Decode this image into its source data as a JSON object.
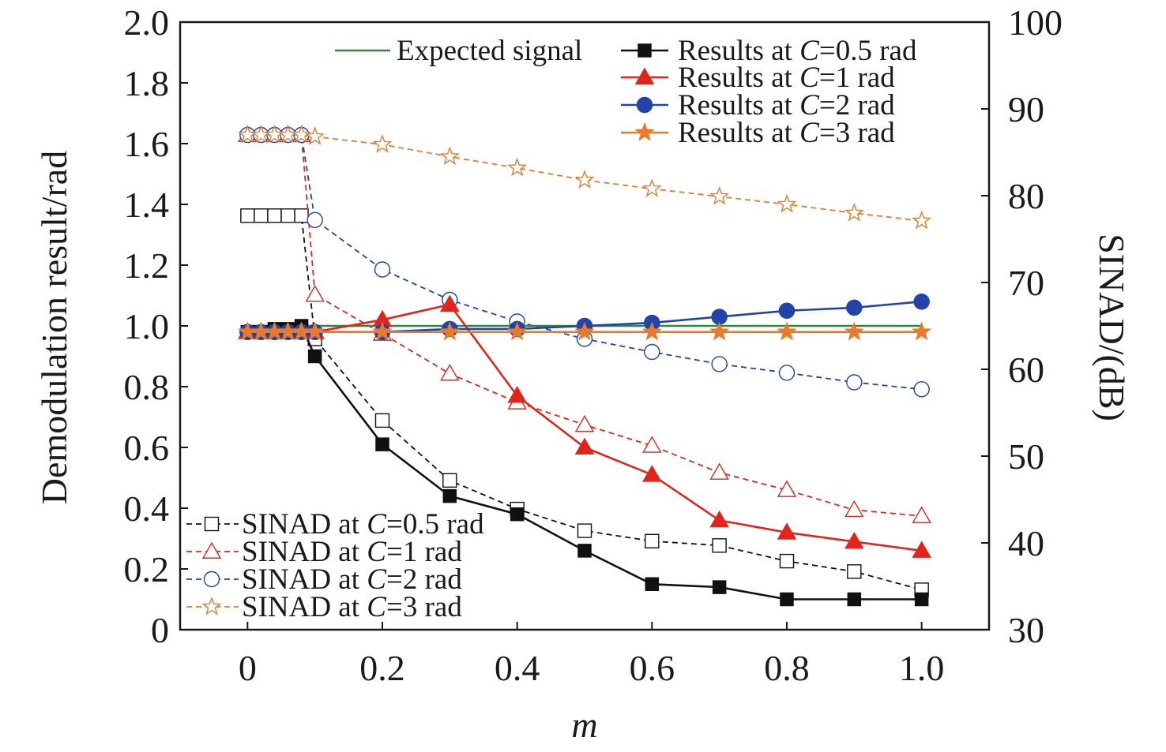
{
  "chart_data": {
    "type": "line",
    "title": "",
    "xlabel": "m",
    "ylabel_left": "Demodulation result/rad",
    "ylabel_right": "SINAD/(dB)",
    "xlim": [
      -0.1,
      1.1
    ],
    "ylim_left": [
      0,
      2.0
    ],
    "ylim_right": [
      30,
      100
    ],
    "xticks": [
      0,
      0.2,
      0.4,
      0.6,
      0.8,
      1.0
    ],
    "xtick_labels": [
      "0",
      "0.2",
      "0.4",
      "0.6",
      "0.8",
      "1.0"
    ],
    "yticks_left": [
      0,
      0.2,
      0.4,
      0.6,
      0.8,
      1.0,
      1.2,
      1.4,
      1.6,
      1.8,
      2.0
    ],
    "ytick_labels_left": [
      "0",
      "0.2",
      "0.4",
      "0.6",
      "0.8",
      "1.0",
      "1.2",
      "1.4",
      "1.6",
      "1.8",
      "2.0"
    ],
    "yticks_right": [
      30,
      40,
      50,
      60,
      70,
      80,
      90,
      100
    ],
    "ytick_labels_right": [
      "30",
      "40",
      "50",
      "60",
      "70",
      "80",
      "90",
      "100"
    ],
    "x": [
      0,
      0.02,
      0.04,
      0.06,
      0.08,
      0.1,
      0.2,
      0.3,
      0.4,
      0.5,
      0.6,
      0.7,
      0.8,
      0.9,
      1.0
    ],
    "series": [
      {
        "name": "Expected signal",
        "axis": "left",
        "style": "solid",
        "marker": "none",
        "color": "#2e8b3a",
        "values": [
          1.0,
          1.0,
          1.0,
          1.0,
          1.0,
          1.0,
          1.0,
          1.0,
          1.0,
          1.0,
          1.0,
          1.0,
          1.0,
          1.0,
          1.0
        ]
      },
      {
        "name": "Results at C=0.5 rad",
        "axis": "left",
        "style": "solid",
        "marker": "square-filled",
        "color": "#111111",
        "values": [
          0.98,
          0.98,
          0.99,
          0.99,
          1.0,
          0.9,
          0.61,
          0.44,
          0.38,
          0.26,
          0.15,
          0.14,
          0.1,
          0.1,
          0.1
        ]
      },
      {
        "name": "Results at C=1 rad",
        "axis": "left",
        "style": "solid",
        "marker": "triangle-filled",
        "color": "#e0261c",
        "values": [
          0.98,
          0.98,
          0.98,
          0.98,
          0.98,
          0.98,
          1.02,
          1.07,
          0.77,
          0.6,
          0.51,
          0.36,
          0.32,
          0.29,
          0.26
        ]
      },
      {
        "name": "Results at C=2 rad",
        "axis": "left",
        "style": "solid",
        "marker": "circle-filled",
        "color": "#2244a8",
        "values": [
          0.98,
          0.98,
          0.98,
          0.98,
          0.98,
          0.98,
          0.98,
          0.99,
          0.99,
          1.0,
          1.01,
          1.03,
          1.05,
          1.06,
          1.08
        ]
      },
      {
        "name": "Results at C=3 rad",
        "axis": "left",
        "style": "solid",
        "marker": "star-filled",
        "color": "#e8792d",
        "values": [
          0.98,
          0.98,
          0.98,
          0.98,
          0.98,
          0.98,
          0.98,
          0.98,
          0.98,
          0.98,
          0.98,
          0.98,
          0.98,
          0.98,
          0.98
        ]
      },
      {
        "name": "SINAD at C=0.5 rad",
        "axis": "right",
        "style": "dashed",
        "marker": "square-open",
        "color": "#111111",
        "values": [
          77.7,
          77.7,
          77.7,
          77.7,
          77.7,
          63.5,
          54.1,
          47.2,
          43.9,
          41.4,
          40.2,
          39.7,
          37.9,
          36.7,
          34.6
        ]
      },
      {
        "name": "SINAD at C=1 rad",
        "axis": "right",
        "style": "dashed",
        "marker": "triangle-open",
        "color": "#e0261c",
        "values": [
          87.0,
          87.0,
          87.0,
          87.0,
          87.0,
          68.6,
          64.1,
          59.5,
          56.2,
          53.6,
          51.2,
          48.1,
          46.1,
          43.8,
          43.1
        ]
      },
      {
        "name": "SINAD at C=2 rad",
        "axis": "right",
        "style": "dashed",
        "marker": "circle-open",
        "color": "#2244a8",
        "values": [
          87.0,
          87.0,
          87.0,
          87.0,
          87.0,
          77.2,
          71.5,
          68.0,
          65.5,
          63.5,
          62.0,
          60.6,
          59.6,
          58.5,
          57.7
        ]
      },
      {
        "name": "SINAD at C=3 rad",
        "axis": "right",
        "style": "dashed",
        "marker": "star-open",
        "color": "#e8792d",
        "values": [
          87.0,
          87.0,
          87.0,
          87.0,
          87.0,
          86.8,
          85.9,
          84.5,
          83.2,
          81.8,
          80.8,
          79.9,
          79.0,
          78.0,
          77.1
        ]
      }
    ],
    "legend_top_right": [
      {
        "italic_prefix": "",
        "text": "Expected signal"
      },
      {
        "prefix": "Results at ",
        "var": "C",
        "suffix": "=0.5 rad"
      },
      {
        "prefix": "Results at ",
        "var": "C",
        "suffix": "=1 rad"
      },
      {
        "prefix": "Results at ",
        "var": "C",
        "suffix": "=2 rad"
      },
      {
        "prefix": "Results at ",
        "var": "C",
        "suffix": "=3 rad"
      }
    ],
    "legend_bottom_left": [
      {
        "prefix": "SINAD at ",
        "var": "C",
        "suffix": "=0.5 rad"
      },
      {
        "prefix": "SINAD at ",
        "var": "C",
        "suffix": "=1 rad"
      },
      {
        "prefix": "SINAD at ",
        "var": "C",
        "suffix": "=2 rad"
      },
      {
        "prefix": "SINAD at ",
        "var": "C",
        "suffix": "=3 rad"
      }
    ],
    "grid": false
  }
}
